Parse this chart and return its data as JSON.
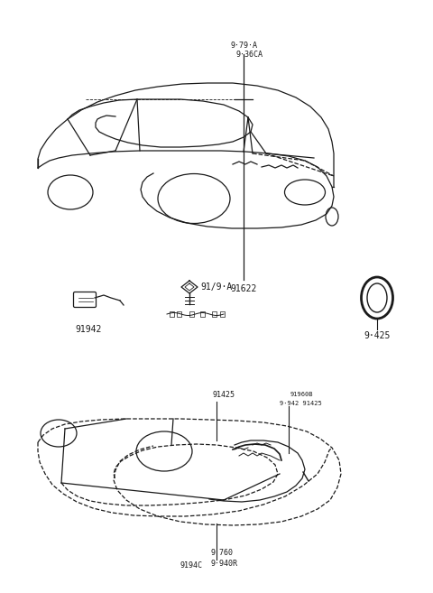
{
  "bg_color": "#ffffff",
  "line_color": "#1a1a1a",
  "fig_width": 4.8,
  "fig_height": 6.57,
  "dpi": 100,
  "labels": {
    "top_car_label1": "9·79·A",
    "top_car_label2": "9·36CA",
    "top_car_bottom": "91622",
    "part_left_label": "91942",
    "part_mid_label1": "91/9·A",
    "part_right_label": "9·425",
    "bot_car_label1": "91425",
    "bot_car_label2": "91960B",
    "bot_car_label3": "9·942 91425",
    "bot_car_label4": "9194C",
    "bot_car_label5": "9·760",
    "bot_car_label6": "9·940R"
  },
  "font_size_label": 7,
  "font_size_small": 6
}
